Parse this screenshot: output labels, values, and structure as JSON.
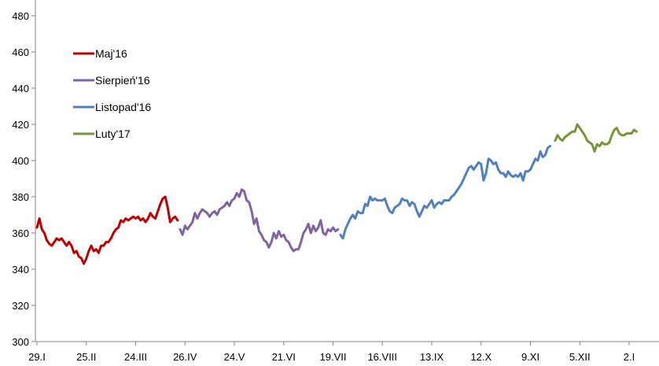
{
  "chart_data": {
    "type": "line",
    "title": "",
    "xlabel": "",
    "ylabel": "",
    "ylim": [
      300,
      480
    ],
    "yticks": [
      300,
      320,
      340,
      360,
      380,
      400,
      420,
      440,
      460,
      480
    ],
    "x_index_range": [
      0,
      240
    ],
    "xtick_labels": [
      "29.I",
      "25.II",
      "24.III",
      "26.IV",
      "24.V",
      "21.VI",
      "19.VII",
      "16.VIII",
      "13.IX",
      "12.X",
      "9.XI",
      "5.XII",
      "2.I"
    ],
    "xtick_index": [
      0,
      20,
      40,
      60,
      80,
      100,
      120,
      140,
      160,
      180,
      200,
      220,
      240
    ],
    "legend_position": "top-left",
    "series": [
      {
        "name": "Maj'16",
        "color": "#C00000",
        "points": [
          [
            0,
            363
          ],
          [
            1,
            368
          ],
          [
            2,
            362
          ],
          [
            3,
            360
          ],
          [
            4,
            356
          ],
          [
            5,
            354
          ],
          [
            6,
            353
          ],
          [
            7,
            355
          ],
          [
            8,
            357
          ],
          [
            9,
            356
          ],
          [
            10,
            357
          ],
          [
            11,
            355
          ],
          [
            12,
            353
          ],
          [
            13,
            355
          ],
          [
            14,
            353
          ],
          [
            15,
            349
          ],
          [
            16,
            350
          ],
          [
            17,
            347
          ],
          [
            18,
            346
          ],
          [
            19,
            343
          ],
          [
            20,
            346
          ],
          [
            21,
            350
          ],
          [
            22,
            353
          ],
          [
            23,
            350
          ],
          [
            24,
            351
          ],
          [
            25,
            349
          ],
          [
            26,
            353
          ],
          [
            27,
            353
          ],
          [
            28,
            355
          ],
          [
            29,
            355
          ],
          [
            30,
            357
          ],
          [
            31,
            360
          ],
          [
            32,
            362
          ],
          [
            33,
            363
          ],
          [
            34,
            367
          ],
          [
            35,
            366
          ],
          [
            36,
            368
          ],
          [
            37,
            367
          ],
          [
            38,
            368
          ],
          [
            39,
            369
          ],
          [
            40,
            368
          ],
          [
            41,
            369
          ],
          [
            42,
            367
          ],
          [
            43,
            368
          ],
          [
            44,
            366
          ],
          [
            45,
            368
          ],
          [
            46,
            371
          ],
          [
            47,
            369
          ],
          [
            48,
            368
          ],
          [
            49,
            372
          ],
          [
            50,
            376
          ],
          [
            51,
            379
          ],
          [
            52,
            380
          ],
          [
            53,
            374
          ],
          [
            54,
            366
          ],
          [
            55,
            368
          ],
          [
            56,
            369
          ],
          [
            57,
            367
          ]
        ]
      },
      {
        "name": "Sierpień'16",
        "color": "#8064A2",
        "points": [
          [
            58,
            362
          ],
          [
            59,
            359
          ],
          [
            60,
            364
          ],
          [
            61,
            362
          ],
          [
            62,
            364
          ],
          [
            63,
            366
          ],
          [
            64,
            371
          ],
          [
            65,
            368
          ],
          [
            66,
            371
          ],
          [
            67,
            373
          ],
          [
            68,
            372
          ],
          [
            69,
            371
          ],
          [
            70,
            369
          ],
          [
            71,
            371
          ],
          [
            72,
            372
          ],
          [
            73,
            370
          ],
          [
            74,
            373
          ],
          [
            75,
            374
          ],
          [
            76,
            375
          ],
          [
            77,
            377
          ],
          [
            78,
            375
          ],
          [
            79,
            378
          ],
          [
            80,
            379
          ],
          [
            81,
            382
          ],
          [
            82,
            380
          ],
          [
            83,
            384
          ],
          [
            84,
            383
          ],
          [
            85,
            378
          ],
          [
            86,
            377
          ],
          [
            87,
            372
          ],
          [
            88,
            365
          ],
          [
            89,
            368
          ],
          [
            90,
            361
          ],
          [
            91,
            359
          ],
          [
            92,
            356
          ],
          [
            93,
            355
          ],
          [
            94,
            352
          ],
          [
            95,
            355
          ],
          [
            96,
            360
          ],
          [
            97,
            357
          ],
          [
            98,
            361
          ],
          [
            99,
            358
          ],
          [
            100,
            359
          ],
          [
            101,
            356
          ],
          [
            102,
            355
          ],
          [
            103,
            352
          ],
          [
            104,
            350
          ],
          [
            105,
            351
          ],
          [
            106,
            351
          ],
          [
            107,
            355
          ],
          [
            108,
            360
          ],
          [
            109,
            362
          ],
          [
            110,
            365
          ],
          [
            111,
            360
          ],
          [
            112,
            364
          ],
          [
            113,
            361
          ],
          [
            114,
            363
          ],
          [
            115,
            367
          ],
          [
            116,
            360
          ],
          [
            117,
            359
          ],
          [
            118,
            362
          ],
          [
            119,
            361
          ],
          [
            120,
            363
          ],
          [
            121,
            361
          ],
          [
            122,
            362
          ]
        ]
      },
      {
        "name": "Listopad'16",
        "color": "#4F81BD",
        "points": [
          [
            123,
            359
          ],
          [
            124,
            357
          ],
          [
            125,
            362
          ],
          [
            126,
            365
          ],
          [
            127,
            368
          ],
          [
            128,
            370
          ],
          [
            129,
            368
          ],
          [
            130,
            372
          ],
          [
            131,
            371
          ],
          [
            132,
            371
          ],
          [
            133,
            376
          ],
          [
            134,
            375
          ],
          [
            135,
            380
          ],
          [
            136,
            378
          ],
          [
            137,
            379
          ],
          [
            138,
            378
          ],
          [
            139,
            378
          ],
          [
            140,
            378
          ],
          [
            141,
            379
          ],
          [
            142,
            375
          ],
          [
            143,
            372
          ],
          [
            144,
            371
          ],
          [
            145,
            374
          ],
          [
            146,
            375
          ],
          [
            147,
            376
          ],
          [
            148,
            379
          ],
          [
            149,
            378
          ],
          [
            150,
            378
          ],
          [
            151,
            375
          ],
          [
            152,
            377
          ],
          [
            153,
            376
          ],
          [
            154,
            372
          ],
          [
            155,
            369
          ],
          [
            156,
            372
          ],
          [
            157,
            375
          ],
          [
            158,
            374
          ],
          [
            159,
            376
          ],
          [
            160,
            378
          ],
          [
            161,
            374
          ],
          [
            162,
            376
          ],
          [
            163,
            377
          ],
          [
            164,
            376
          ],
          [
            165,
            378
          ],
          [
            166,
            378
          ],
          [
            167,
            378
          ],
          [
            168,
            380
          ],
          [
            169,
            381
          ],
          [
            170,
            383
          ],
          [
            171,
            385
          ],
          [
            172,
            387
          ],
          [
            173,
            390
          ],
          [
            174,
            393
          ],
          [
            175,
            396
          ],
          [
            176,
            397
          ],
          [
            177,
            395
          ],
          [
            178,
            397
          ],
          [
            179,
            399
          ],
          [
            180,
            398
          ],
          [
            181,
            389
          ],
          [
            182,
            393
          ],
          [
            183,
            401
          ],
          [
            184,
            400
          ],
          [
            185,
            398
          ],
          [
            186,
            399
          ],
          [
            187,
            395
          ],
          [
            188,
            393
          ],
          [
            189,
            393
          ],
          [
            190,
            391
          ],
          [
            191,
            394
          ],
          [
            192,
            392
          ],
          [
            193,
            391
          ],
          [
            194,
            392
          ],
          [
            195,
            391
          ],
          [
            196,
            393
          ],
          [
            197,
            389
          ],
          [
            198,
            394
          ],
          [
            199,
            394
          ],
          [
            200,
            395
          ],
          [
            201,
            398
          ],
          [
            202,
            401
          ],
          [
            203,
            400
          ],
          [
            204,
            405
          ],
          [
            205,
            402
          ],
          [
            206,
            403
          ],
          [
            207,
            407
          ],
          [
            208,
            408
          ]
        ]
      },
      {
        "name": "Luty'17",
        "color": "#77933C",
        "points": [
          [
            210,
            411
          ],
          [
            211,
            414
          ],
          [
            212,
            412
          ],
          [
            213,
            411
          ],
          [
            214,
            413
          ],
          [
            215,
            414
          ],
          [
            216,
            415
          ],
          [
            217,
            416
          ],
          [
            218,
            416
          ],
          [
            219,
            420
          ],
          [
            220,
            418
          ],
          [
            221,
            416
          ],
          [
            222,
            414
          ],
          [
            223,
            411
          ],
          [
            224,
            410
          ],
          [
            225,
            409
          ],
          [
            226,
            405
          ],
          [
            227,
            409
          ],
          [
            228,
            408
          ],
          [
            229,
            410
          ],
          [
            230,
            409
          ],
          [
            231,
            409
          ],
          [
            232,
            410
          ],
          [
            233,
            414
          ],
          [
            234,
            417
          ],
          [
            235,
            418
          ],
          [
            236,
            415
          ],
          [
            237,
            414
          ],
          [
            238,
            414
          ],
          [
            239,
            415
          ],
          [
            240,
            415
          ],
          [
            241,
            415
          ],
          [
            242,
            417
          ],
          [
            243,
            416
          ]
        ]
      }
    ]
  }
}
